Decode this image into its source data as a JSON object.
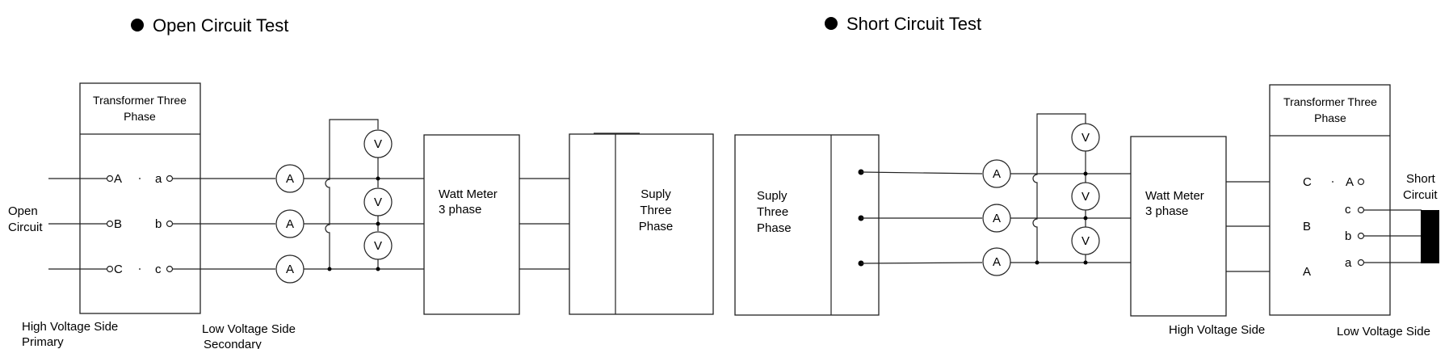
{
  "open_test": {
    "title": "Open Circuit Test",
    "transformer_label": [
      "Transformer Three",
      "Phase"
    ],
    "terminals_left": [
      "A",
      "B",
      "C"
    ],
    "terminals_right": [
      "a",
      "b",
      "c"
    ],
    "open_circuit_label": [
      "Open",
      "Circuit"
    ],
    "hv_label": [
      "High Voltage Side",
      "Primary"
    ],
    "lv_label": [
      "Low Voltage Side",
      "Secondary"
    ],
    "ammeter": "A",
    "voltmeter": "V",
    "wattmeter_label": [
      "Watt Meter",
      "3 phase"
    ],
    "supply_label": [
      "Suply",
      "Three",
      "Phase"
    ]
  },
  "short_test": {
    "title": "Short Circuit Test",
    "supply_label": [
      "Suply",
      "Three",
      "Phase"
    ],
    "ammeter": "A",
    "voltmeter": "V",
    "wattmeter_label": [
      "Watt Meter",
      "3 phase"
    ],
    "transformer_label": [
      "Transformer Three",
      "Phase"
    ],
    "terminals_left": [
      "C",
      "B",
      "A"
    ],
    "terminals_right": [
      "A",
      "c",
      "b",
      "a"
    ],
    "short_circuit_label": [
      "Short",
      "Circuit"
    ],
    "hv_label": "High Voltage Side",
    "lv_label": "Low Voltage Side"
  }
}
